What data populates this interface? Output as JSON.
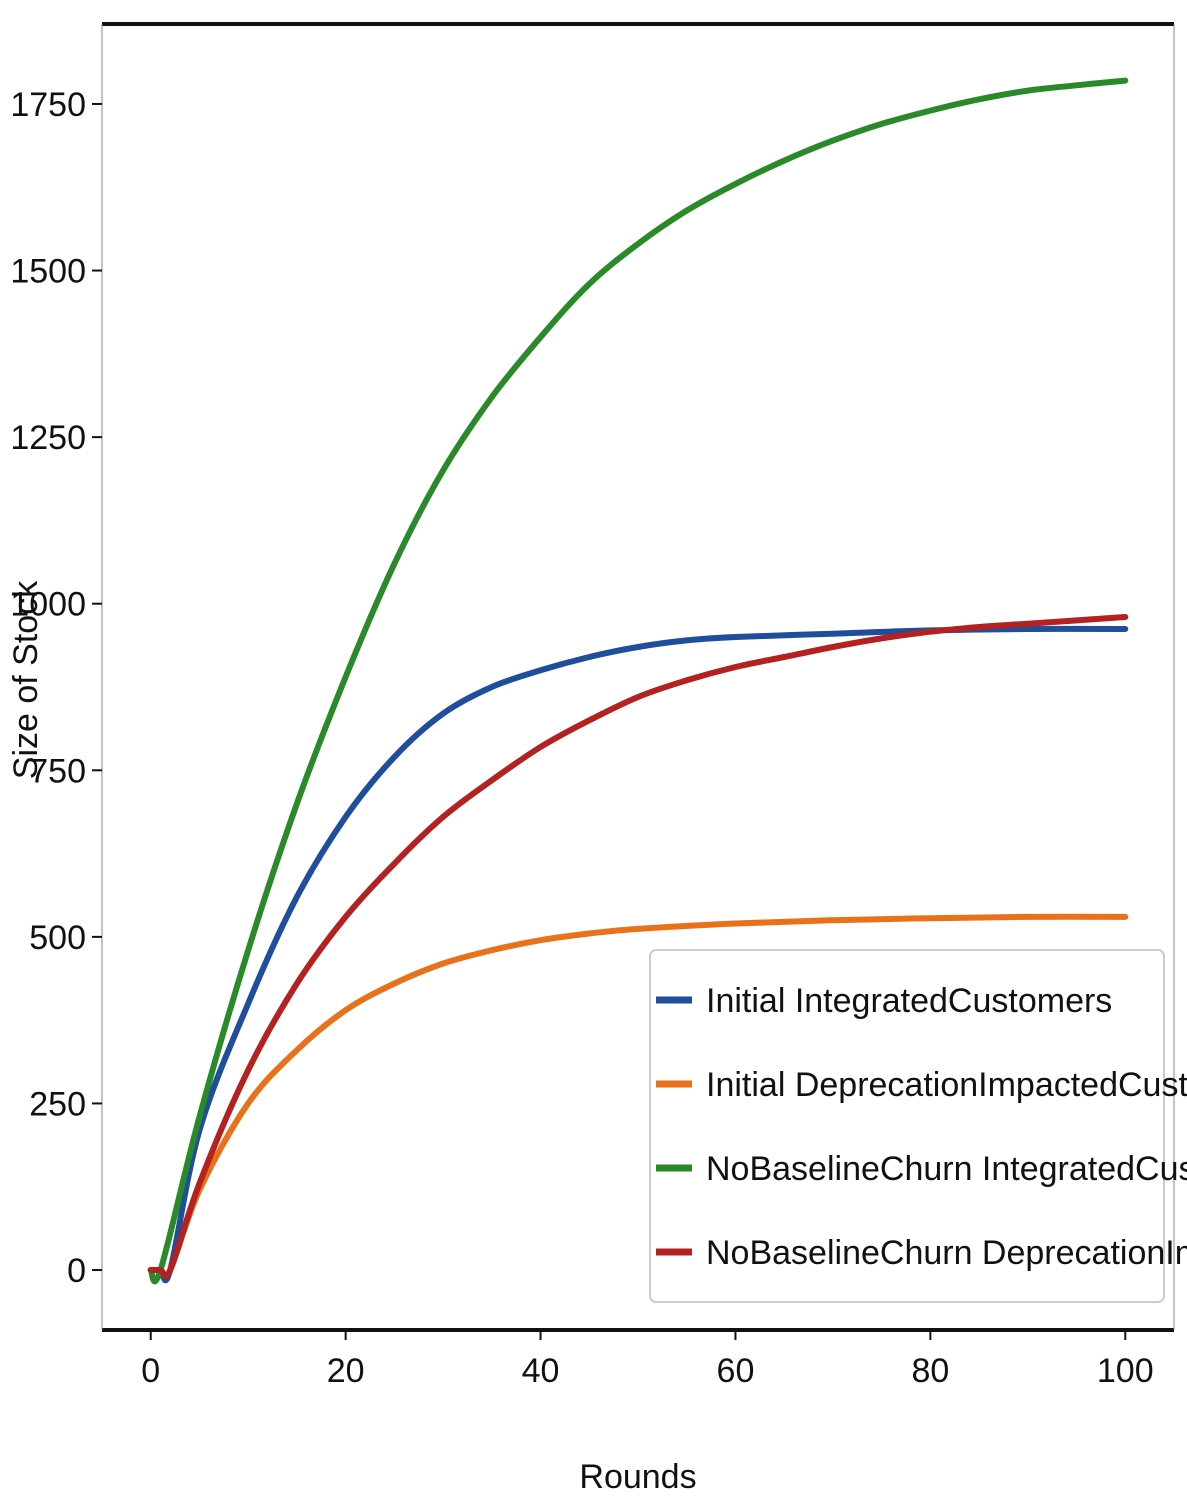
{
  "chart_data": {
    "type": "line",
    "title": "",
    "xlabel": "Rounds",
    "ylabel": "Size of Stock",
    "xlim": [
      -5,
      105
    ],
    "ylim": [
      -90,
      1870
    ],
    "xticks": [
      0,
      20,
      40,
      60,
      80,
      100
    ],
    "yticks": [
      0,
      250,
      500,
      750,
      1000,
      1250,
      1500,
      1750
    ],
    "grid": false,
    "legend_position": "lower-right",
    "series": [
      {
        "name": "Initial IntegratedCustomers",
        "color": "#1f4e9c",
        "points": [
          [
            0,
            0
          ],
          [
            1,
            0
          ],
          [
            2,
            0
          ],
          [
            5,
            210
          ],
          [
            10,
            400
          ],
          [
            15,
            560
          ],
          [
            20,
            680
          ],
          [
            25,
            770
          ],
          [
            30,
            835
          ],
          [
            35,
            875
          ],
          [
            40,
            900
          ],
          [
            45,
            920
          ],
          [
            50,
            935
          ],
          [
            55,
            945
          ],
          [
            60,
            950
          ],
          [
            70,
            955
          ],
          [
            80,
            960
          ],
          [
            90,
            962
          ],
          [
            100,
            962
          ]
        ]
      },
      {
        "name": "Initial DeprecationImpactedCustomers",
        "color": "#e8711a",
        "points": [
          [
            0,
            0
          ],
          [
            1,
            0
          ],
          [
            2,
            0
          ],
          [
            5,
            120
          ],
          [
            10,
            250
          ],
          [
            15,
            330
          ],
          [
            20,
            390
          ],
          [
            25,
            430
          ],
          [
            30,
            460
          ],
          [
            35,
            480
          ],
          [
            40,
            495
          ],
          [
            45,
            505
          ],
          [
            50,
            512
          ],
          [
            60,
            520
          ],
          [
            70,
            525
          ],
          [
            80,
            528
          ],
          [
            90,
            530
          ],
          [
            100,
            530
          ]
        ]
      },
      {
        "name": "NoBaselineChurn IntegratedCustomers",
        "color": "#2a8a2a",
        "points": [
          [
            0,
            0
          ],
          [
            1,
            0
          ],
          [
            5,
            230
          ],
          [
            10,
            480
          ],
          [
            15,
            700
          ],
          [
            20,
            890
          ],
          [
            25,
            1060
          ],
          [
            30,
            1200
          ],
          [
            35,
            1310
          ],
          [
            40,
            1400
          ],
          [
            45,
            1480
          ],
          [
            50,
            1540
          ],
          [
            55,
            1590
          ],
          [
            60,
            1630
          ],
          [
            65,
            1665
          ],
          [
            70,
            1695
          ],
          [
            75,
            1720
          ],
          [
            80,
            1740
          ],
          [
            85,
            1757
          ],
          [
            90,
            1770
          ],
          [
            95,
            1778
          ],
          [
            100,
            1785
          ]
        ]
      },
      {
        "name": "NoBaselineChurn DeprecationImpactedCustomers",
        "color": "#b42121",
        "points": [
          [
            0,
            0
          ],
          [
            1,
            0
          ],
          [
            2,
            0
          ],
          [
            5,
            130
          ],
          [
            10,
            300
          ],
          [
            15,
            430
          ],
          [
            20,
            530
          ],
          [
            25,
            610
          ],
          [
            30,
            680
          ],
          [
            35,
            735
          ],
          [
            40,
            785
          ],
          [
            45,
            825
          ],
          [
            50,
            860
          ],
          [
            55,
            885
          ],
          [
            60,
            905
          ],
          [
            65,
            920
          ],
          [
            70,
            935
          ],
          [
            75,
            948
          ],
          [
            80,
            958
          ],
          [
            85,
            965
          ],
          [
            90,
            970
          ],
          [
            95,
            975
          ],
          [
            100,
            980
          ]
        ]
      }
    ]
  }
}
